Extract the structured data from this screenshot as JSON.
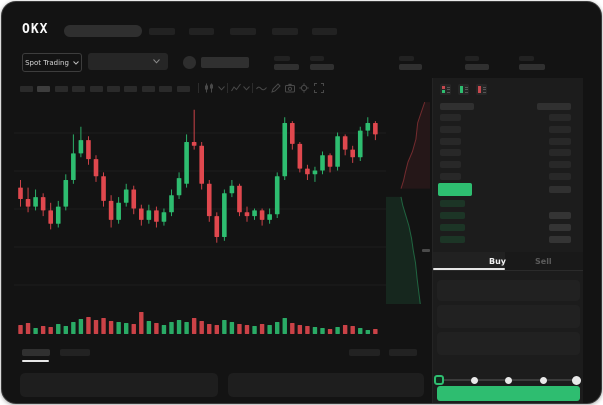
{
  "brand": {
    "logo_text": "OKX"
  },
  "header": {
    "nav_item_count": 5
  },
  "market_bar": {
    "market_type_label": "Spot Trading",
    "stat_block_count": 5
  },
  "chart_toolbar": {
    "button_count": 10,
    "active_button_index": 1,
    "icons": [
      "candles-icon",
      "chevron-down-icon",
      "indicator-icon",
      "chevron-down-icon",
      "line-tool-icon",
      "draw-icon",
      "camera-icon",
      "settings-icon",
      "fullscreen-icon"
    ]
  },
  "order_book": {
    "view_icons": [
      "orderbook-combined-icon",
      "orderbook-bids-icon",
      "orderbook-asks-icon"
    ],
    "ask_rows": 6,
    "bid_rows": 4,
    "last_price_highlight_color": "#2ebd70"
  },
  "order_form": {
    "buy_tab_label": "Buy",
    "sell_tab_label": "Sell",
    "active_tab": "Buy",
    "input_count": 3,
    "slider": {
      "steps": 5,
      "active_step": 1
    },
    "submit_color": "#2ebd70"
  },
  "bottom_bar": {
    "tab_count": 2,
    "active_tab_index": 0,
    "right_control_count": 2,
    "panel_count": 2
  },
  "colors": {
    "up": "#2ebd70",
    "down": "#e0484e",
    "window_bg": "#131313",
    "panel_bg": "#1c1c1c",
    "gridline": "#1d1d1d"
  },
  "chart_data": {
    "type": "candlestick",
    "title": "",
    "xlabel": "",
    "ylabel": "",
    "axis_labels_visible": false,
    "value_scale": "relative 0-100 (no numeric axis labels visible in screenshot)",
    "gridlines_y_relative": [
      85,
      65,
      45,
      25,
      5
    ],
    "candles_ohlc": [
      [
        56,
        60,
        46,
        50
      ],
      [
        50,
        56,
        43,
        46
      ],
      [
        46,
        55,
        44,
        51
      ],
      [
        51,
        53,
        41,
        44
      ],
      [
        44,
        48,
        34,
        37
      ],
      [
        37,
        49,
        35,
        46
      ],
      [
        46,
        63,
        44,
        60
      ],
      [
        60,
        84,
        58,
        74
      ],
      [
        74,
        88,
        72,
        81
      ],
      [
        81,
        83,
        68,
        71
      ],
      [
        71,
        73,
        59,
        62
      ],
      [
        62,
        64,
        46,
        49
      ],
      [
        49,
        52,
        35,
        39
      ],
      [
        39,
        51,
        37,
        48
      ],
      [
        48,
        58,
        46,
        55
      ],
      [
        55,
        57,
        42,
        45
      ],
      [
        45,
        47,
        36,
        39
      ],
      [
        39,
        47,
        37,
        44
      ],
      [
        44,
        46,
        35,
        38
      ],
      [
        38,
        45,
        36,
        43
      ],
      [
        43,
        55,
        41,
        52
      ],
      [
        52,
        64,
        50,
        61
      ],
      [
        58,
        84,
        56,
        80
      ],
      [
        80,
        97,
        76,
        78
      ],
      [
        78,
        80,
        55,
        58
      ],
      [
        58,
        60,
        38,
        41
      ],
      [
        41,
        43,
        27,
        30
      ],
      [
        30,
        55,
        28,
        53
      ],
      [
        53,
        60,
        51,
        57
      ],
      [
        57,
        58,
        41,
        43
      ],
      [
        43,
        46,
        38,
        41
      ],
      [
        41,
        45,
        39,
        44
      ],
      [
        44,
        45,
        36,
        39
      ],
      [
        39,
        45,
        37,
        42
      ],
      [
        42,
        64,
        40,
        62
      ],
      [
        62,
        93,
        60,
        90
      ],
      [
        90,
        91,
        76,
        79
      ],
      [
        79,
        80,
        64,
        66
      ],
      [
        66,
        68,
        60,
        63
      ],
      [
        63,
        67,
        59,
        65
      ],
      [
        65,
        75,
        63,
        73
      ],
      [
        73,
        74,
        64,
        67
      ],
      [
        67,
        85,
        65,
        83
      ],
      [
        83,
        84,
        73,
        76
      ],
      [
        76,
        78,
        69,
        72
      ],
      [
        72,
        88,
        70,
        86
      ],
      [
        86,
        93,
        83,
        90
      ],
      [
        90,
        91,
        81,
        84
      ]
    ],
    "volume_relative": [
      9,
      11,
      6,
      8,
      7,
      10,
      8,
      12,
      15,
      17,
      14,
      16,
      13,
      12,
      11,
      10,
      22,
      13,
      11,
      9,
      12,
      14,
      12,
      16,
      13,
      10,
      9,
      14,
      12,
      10,
      9,
      8,
      10,
      9,
      12,
      16,
      11,
      9,
      8,
      7,
      6,
      5,
      7,
      9,
      8,
      6,
      4,
      5
    ],
    "depth": {
      "asks_curve": [
        [
          0.88,
          0.02
        ],
        [
          0.8,
          0.07
        ],
        [
          0.72,
          0.12
        ],
        [
          0.68,
          0.2
        ],
        [
          0.6,
          0.26
        ],
        [
          0.5,
          0.31
        ],
        [
          0.44,
          0.36
        ],
        [
          0.4,
          0.4
        ],
        [
          0.34,
          0.44
        ]
      ],
      "bids_curve": [
        [
          0.34,
          0.48
        ],
        [
          0.38,
          0.52
        ],
        [
          0.45,
          0.57
        ],
        [
          0.52,
          0.62
        ],
        [
          0.58,
          0.68
        ],
        [
          0.62,
          0.74
        ],
        [
          0.67,
          0.8
        ],
        [
          0.71,
          0.88
        ],
        [
          0.75,
          0.95
        ],
        [
          0.78,
          1.0
        ]
      ]
    }
  }
}
